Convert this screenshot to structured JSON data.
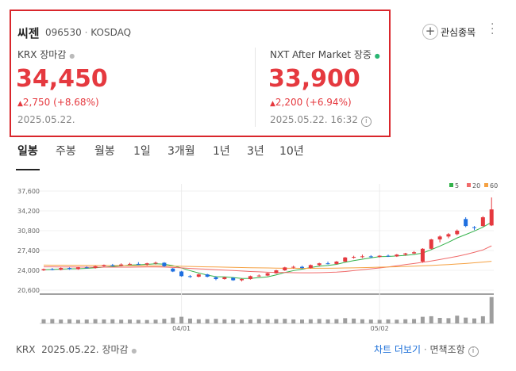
{
  "header": {
    "name": "씨젠",
    "code": "096530",
    "market": "KOSDAQ",
    "watch": "관심종목"
  },
  "krx": {
    "label": "KRX 장마감",
    "price": "34,450",
    "change": "2,750",
    "pct": "(+8.68%)",
    "date": "2025.05.22."
  },
  "nxt": {
    "label": "NXT After Market 장중",
    "price": "33,900",
    "change": "2,200",
    "pct": "(+6.94%)",
    "date": "2025.05.22. 16:32"
  },
  "tabs": [
    "일봉",
    "주봉",
    "월봉",
    "1일",
    "3개월",
    "1년",
    "3년",
    "10년"
  ],
  "chart_data": {
    "type": "candlestick",
    "categories": [
      null,
      null,
      null,
      null,
      null,
      null,
      null,
      null,
      null,
      null,
      null,
      null,
      null,
      null,
      null,
      null,
      "04/01",
      null,
      null,
      null,
      null,
      null,
      null,
      null,
      null,
      null,
      null,
      null,
      null,
      null,
      null,
      null,
      null,
      null,
      null,
      null,
      null,
      null,
      null,
      "05/02",
      null,
      null,
      null,
      null,
      null,
      null,
      null,
      null,
      null,
      null,
      null,
      null,
      null
    ],
    "open": [
      24000,
      24200,
      24100,
      24400,
      24200,
      24500,
      24400,
      24700,
      24900,
      24800,
      25000,
      25100,
      25000,
      25200,
      25300,
      24300,
      23800,
      23000,
      22900,
      23300,
      22800,
      22500,
      22700,
      22300,
      22500,
      23000,
      23100,
      23500,
      24000,
      24500,
      24600,
      24400,
      24900,
      25200,
      25100,
      25500,
      26200,
      26300,
      26400,
      26300,
      26500,
      26400,
      26700,
      26900,
      25500,
      27700,
      29300,
      29800,
      30200,
      32800,
      31400,
      31600,
      31700
    ],
    "high": [
      24300,
      24400,
      24500,
      24500,
      24600,
      24700,
      24800,
      25000,
      25100,
      25200,
      25300,
      25400,
      25300,
      25500,
      25400,
      24400,
      23900,
      23200,
      23400,
      23400,
      23000,
      22900,
      22800,
      22600,
      23100,
      23300,
      23600,
      24100,
      24600,
      24800,
      24800,
      25000,
      25300,
      25500,
      25600,
      26300,
      26500,
      26700,
      26600,
      26600,
      26700,
      26800,
      27000,
      27300,
      27800,
      29400,
      30000,
      30400,
      31000,
      33100,
      31600,
      33300,
      36500
    ],
    "low": [
      23900,
      24000,
      24000,
      24100,
      24100,
      24300,
      24300,
      24600,
      24700,
      24700,
      24900,
      24900,
      24800,
      25000,
      24600,
      23700,
      22900,
      22700,
      22800,
      22800,
      22300,
      22400,
      22200,
      22100,
      22400,
      22900,
      23000,
      23400,
      23900,
      24300,
      24300,
      24300,
      24700,
      25000,
      25000,
      25400,
      26000,
      26100,
      26100,
      26200,
      26300,
      26300,
      26500,
      26800,
      25300,
      27600,
      28800,
      29500,
      30000,
      31400,
      30900,
      31500,
      31600
    ],
    "close": [
      24200,
      24100,
      24400,
      24200,
      24500,
      24400,
      24700,
      24900,
      24800,
      25000,
      25100,
      25000,
      25200,
      25300,
      24700,
      23800,
      23000,
      22900,
      23300,
      22900,
      22500,
      22800,
      22300,
      22500,
      23000,
      23100,
      23500,
      24000,
      24500,
      24600,
      24400,
      24900,
      25200,
      25100,
      25500,
      26200,
      26300,
      26400,
      26300,
      26500,
      26400,
      26700,
      26900,
      27100,
      27700,
      29300,
      29800,
      30200,
      30800,
      31600,
      31300,
      33100,
      34450
    ],
    "up_color": "#e5393f",
    "down_color": "#1e6fe0",
    "series": [
      {
        "name": "5",
        "color": "#33b24a",
        "values": [
          24100,
          24150,
          24200,
          24250,
          24280,
          24340,
          24440,
          24540,
          24660,
          24760,
          24900,
          24960,
          25020,
          25120,
          25060,
          24800,
          24400,
          23940,
          23540,
          23180,
          22920,
          22880,
          22760,
          22600,
          22620,
          22740,
          22880,
          23220,
          23620,
          23940,
          24200,
          24480,
          24720,
          24840,
          25020,
          25380,
          25660,
          25900,
          26140,
          26340,
          26380,
          26460,
          26560,
          26720,
          26960,
          27540,
          28160,
          28820,
          29560,
          30140,
          30740,
          31400,
          32250
        ]
      },
      {
        "name": "20",
        "color": "#f06b6b",
        "values": [
          24600,
          24590,
          24580,
          24570,
          24560,
          24550,
          24540,
          24540,
          24540,
          24540,
          24550,
          24560,
          24570,
          24580,
          24560,
          24500,
          24420,
          24330,
          24260,
          24180,
          24100,
          24040,
          23960,
          23880,
          23800,
          23740,
          23680,
          23640,
          23620,
          23600,
          23580,
          23580,
          23600,
          23640,
          23700,
          23800,
          23950,
          24100,
          24250,
          24400,
          24580,
          24780,
          24980,
          25180,
          25380,
          25600,
          25860,
          26120,
          26400,
          26720,
          27100,
          27500,
          28200
        ]
      },
      {
        "name": "60",
        "color": "#f5a142",
        "values": [
          24900,
          24890,
          24880,
          24870,
          24860,
          24850,
          24840,
          24830,
          24820,
          24810,
          24800,
          24790,
          24780,
          24770,
          24750,
          24720,
          24690,
          24660,
          24630,
          24600,
          24570,
          24540,
          24510,
          24480,
          24450,
          24420,
          24400,
          24380,
          24360,
          24350,
          24340,
          24340,
          24350,
          24360,
          24380,
          24400,
          24430,
          24460,
          24500,
          24540,
          24580,
          24620,
          24670,
          24720,
          24780,
          24840,
          24910,
          24990,
          25080,
          25180,
          25290,
          25410,
          25540
        ]
      }
    ],
    "ylim": [
      20600,
      37600
    ],
    "yticks": [
      {
        "value": 20600,
        "label": "20,600"
      },
      {
        "value": 24000,
        "label": "24,000"
      },
      {
        "value": 27400,
        "label": "27,400"
      },
      {
        "value": 30800,
        "label": "30,800"
      },
      {
        "value": 34200,
        "label": "34,200"
      },
      {
        "value": 37600,
        "label": "37,600"
      }
    ],
    "grid": true,
    "volume": [
      300,
      320,
      280,
      300,
      260,
      280,
      310,
      290,
      300,
      270,
      280,
      260,
      250,
      270,
      330,
      420,
      480,
      350,
      300,
      310,
      330,
      300,
      280,
      260,
      290,
      320,
      300,
      310,
      330,
      290,
      280,
      300,
      320,
      290,
      310,
      380,
      350,
      300,
      280,
      260,
      290,
      270,
      300,
      320,
      480,
      520,
      400,
      380,
      560,
      420,
      360,
      520,
      1900
    ],
    "volume_color": "#9e9e9e",
    "volume_ylim": [
      0,
      2000
    ]
  },
  "footer": {
    "source": "KRX",
    "date": "2025.05.22.",
    "status": "장마감",
    "more": "차트 더보기",
    "disclaimer": "면책조항"
  }
}
